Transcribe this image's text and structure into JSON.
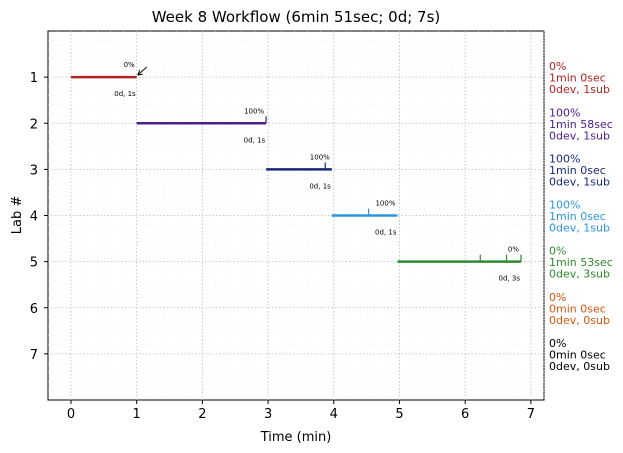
{
  "chart_data": {
    "type": "gantt",
    "title": "Week 8 Workflow (6min 51sec; 0d; 7s)",
    "xlabel": "Time (min)",
    "ylabel": "Lab #",
    "xlim": [
      -0.35,
      7.2
    ],
    "ylim": [
      0,
      8
    ],
    "x_ticks": [
      "0",
      "1",
      "2",
      "3",
      "4",
      "5",
      "6",
      "7"
    ],
    "y_ticks": [
      "1",
      "2",
      "3",
      "4",
      "5",
      "6",
      "7"
    ],
    "grid": true,
    "labs": [
      {
        "lab": 1,
        "start": 0.0,
        "end": 1.0,
        "color": "#b22222",
        "percent": "0%",
        "time": "1min 0sec",
        "devsub": "0dev, 1sub",
        "sub_times": [],
        "note": "0d, 1s",
        "arrow": true
      },
      {
        "lab": 2,
        "start": 1.0,
        "end": 2.97,
        "color": "#4b1c8c",
        "percent": "100%",
        "time": "1min 58sec",
        "devsub": "0dev, 1sub",
        "sub_times": [
          2.97
        ],
        "note": "0d, 1s",
        "arrow": false
      },
      {
        "lab": 3,
        "start": 2.97,
        "end": 3.97,
        "color": "#1a2a7a",
        "percent": "100%",
        "time": "1min 0sec",
        "devsub": "0dev, 1sub",
        "sub_times": [
          3.87
        ],
        "note": "0d, 1s",
        "arrow": false
      },
      {
        "lab": 4,
        "start": 3.97,
        "end": 4.97,
        "color": "#2b95e0",
        "percent": "100%",
        "time": "1min 0sec",
        "devsub": "0dev, 1sub",
        "sub_times": [
          4.53
        ],
        "note": "0d, 1s",
        "arrow": false
      },
      {
        "lab": 5,
        "start": 4.97,
        "end": 6.85,
        "color": "#2e8b2e",
        "percent": "0%",
        "time": "1min 53sec",
        "devsub": "0dev, 3sub",
        "sub_times": [
          6.23,
          6.63,
          6.85
        ],
        "note": "0d, 3s",
        "arrow": false
      },
      {
        "lab": 6,
        "start": null,
        "end": null,
        "color": "#d9540e",
        "percent": "0%",
        "time": "0min 0sec",
        "devsub": "0dev, 0sub",
        "sub_times": [],
        "note": "",
        "arrow": false
      },
      {
        "lab": 7,
        "start": null,
        "end": null,
        "color": "#000000",
        "percent": "0%",
        "time": "0min 0sec",
        "devsub": "0dev, 0sub",
        "sub_times": [],
        "note": "",
        "arrow": false
      }
    ]
  }
}
